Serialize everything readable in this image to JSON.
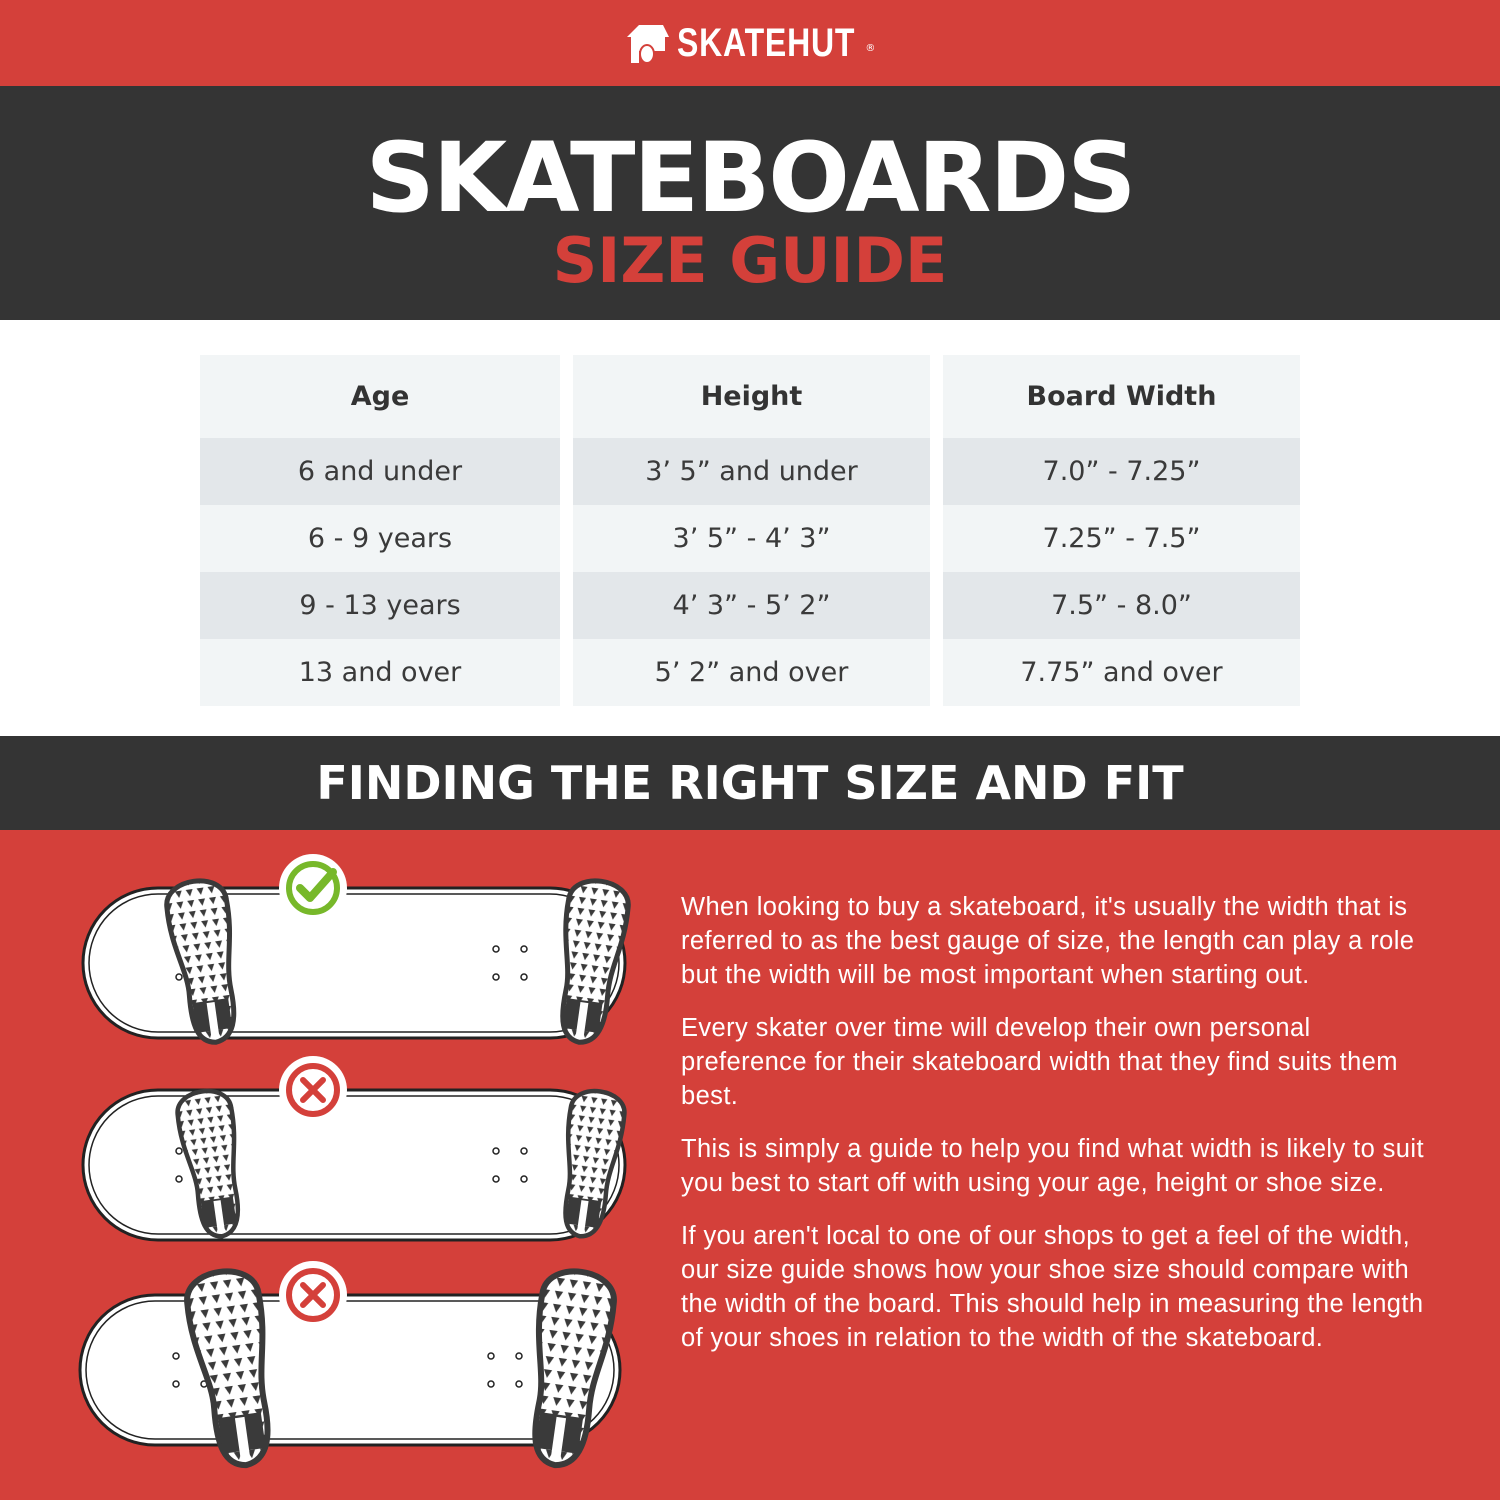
{
  "brand": {
    "name": "SKATEHUT",
    "registered": "®",
    "colors": {
      "red": "#d4403a",
      "dark": "#343434",
      "check": "#77b82a"
    }
  },
  "header": {
    "title": "SKATEBOARDS",
    "subtitle": "SIZE GUIDE"
  },
  "size_table": {
    "columns": [
      "Age",
      "Height",
      "Board Width"
    ],
    "rows": [
      [
        "6 and under",
        "3’ 5” and under",
        "7.0” - 7.25”"
      ],
      [
        "6 - 9 years",
        "3’ 5” - 4’ 3”",
        "7.25” - 7.5”"
      ],
      [
        "9 - 13 years",
        "4’ 3” - 5’ 2”",
        "7.5” - 8.0”"
      ],
      [
        "13 and over",
        "5’ 2” and over",
        "7.75” and over"
      ]
    ]
  },
  "section": {
    "title": "FINDING THE RIGHT SIZE AND FIT"
  },
  "fit_examples": [
    {
      "fit": "correct",
      "icon": "check-icon"
    },
    {
      "fit": "incorrect",
      "icon": "cross-icon"
    },
    {
      "fit": "incorrect",
      "icon": "cross-icon"
    }
  ],
  "paragraphs": [
    "When looking to buy a skateboard, it's usually the width that is referred to as the best gauge of size, the length can play a role but the width will be most important when starting out.",
    "Every skater over time will develop their own personal preference for their skateboard width that they find suits them best.",
    "This is simply a guide to help you find what width is likely to suit you best to start off with using your age, height or shoe size.",
    "If you aren't local to one of our shops to get a feel of the width, our size guide shows how your shoe size should compare with the width of the board. This should help in measuring the length of your shoes in relation to the width of the skateboard."
  ]
}
